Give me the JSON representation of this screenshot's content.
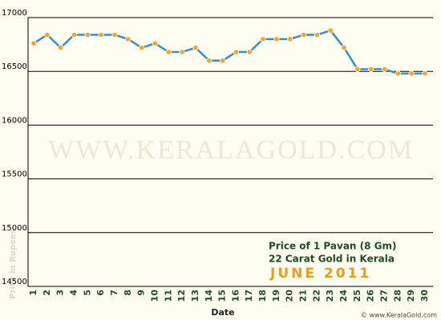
{
  "chart_data": {
    "type": "line",
    "watermark": "WWW.KERALAGOLD.COM",
    "y_label": "Price in Rupees",
    "x_label": "Date",
    "legend_title_lines": [
      "Price of 1 Pavan (8 Gm)",
      "22 Carat Gold in Kerala"
    ],
    "period": "JUNE 2011",
    "credit": "© www.KeralaGold.com",
    "categories": [
      "1",
      "2",
      "3",
      "4",
      "5",
      "6",
      "7",
      "8",
      "9",
      "10",
      "11",
      "12",
      "13",
      "14",
      "15",
      "16",
      "17",
      "18",
      "19",
      "20",
      "21",
      "22",
      "23",
      "24",
      "25",
      "26",
      "27",
      "28",
      "29",
      "30"
    ],
    "series": [
      {
        "color": "#3b8fc4",
        "marker_color": "#f5a623",
        "values": [
          16760,
          16840,
          16720,
          16840,
          16840,
          16840,
          16840,
          16800,
          16720,
          16760,
          16680,
          16680,
          16720,
          16600,
          16600,
          16680,
          16680,
          16800,
          16800,
          16800,
          16840,
          16840,
          16880,
          16720,
          16520,
          16520,
          16520,
          16480,
          16480,
          16480
        ]
      }
    ],
    "ylim": [
      14500,
      17000
    ],
    "yticks": [
      14500,
      15000,
      15500,
      16000,
      16500,
      17000
    ],
    "grid": true
  }
}
